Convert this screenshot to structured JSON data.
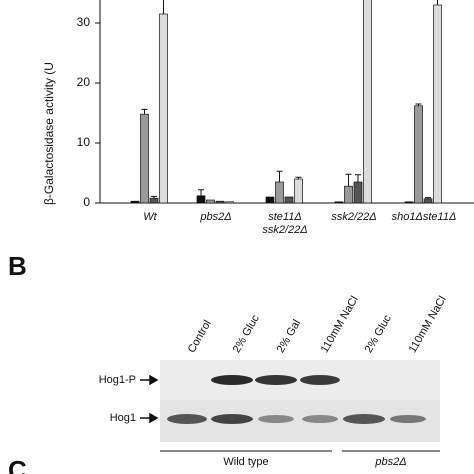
{
  "chart_data": {
    "type": "bar",
    "y_label": "β-Galactosidase activity (U",
    "categories": [
      "Wt",
      "pbs2Δ",
      "ste11Δ\nssk2/22Δ",
      "ssk2/22Δ",
      "sho1Δste11Δ"
    ],
    "series": [
      {
        "color": "#111111",
        "values": [
          0.3,
          1.2,
          1.0,
          0.2,
          0.2
        ],
        "errors": [
          null,
          1.0,
          null,
          null,
          null
        ]
      },
      {
        "color": "#9a9a9a",
        "values": [
          14.8,
          0.5,
          3.5,
          2.8,
          16.2
        ],
        "errors": [
          0.8,
          null,
          1.8,
          2.0,
          0.3
        ]
      },
      {
        "color": "#555555",
        "values": [
          0.8,
          0.3,
          1.0,
          3.5,
          0.7
        ],
        "errors": [
          0.3,
          null,
          null,
          1.2,
          0.2
        ]
      },
      {
        "color": "#dcdcdc",
        "values": [
          31.5,
          0.2,
          4.0,
          36,
          33
        ],
        "errors": [
          2.5,
          null,
          0.3,
          null,
          1.0
        ]
      }
    ],
    "ylim": [
      0,
      34
    ],
    "yticks": [
      0,
      10,
      20,
      30
    ]
  },
  "panel_b": {
    "letter": "B",
    "lanes": [
      "Control",
      "2% Gluc",
      "2% Gal",
      "110mM NaCl",
      "2% Gluc",
      "110mM NaCl"
    ],
    "rows": [
      "Hog1-P",
      "Hog1"
    ],
    "groups": [
      "Wild type",
      "pbs2Δ"
    ]
  },
  "panel_c": {
    "letter": "C"
  }
}
